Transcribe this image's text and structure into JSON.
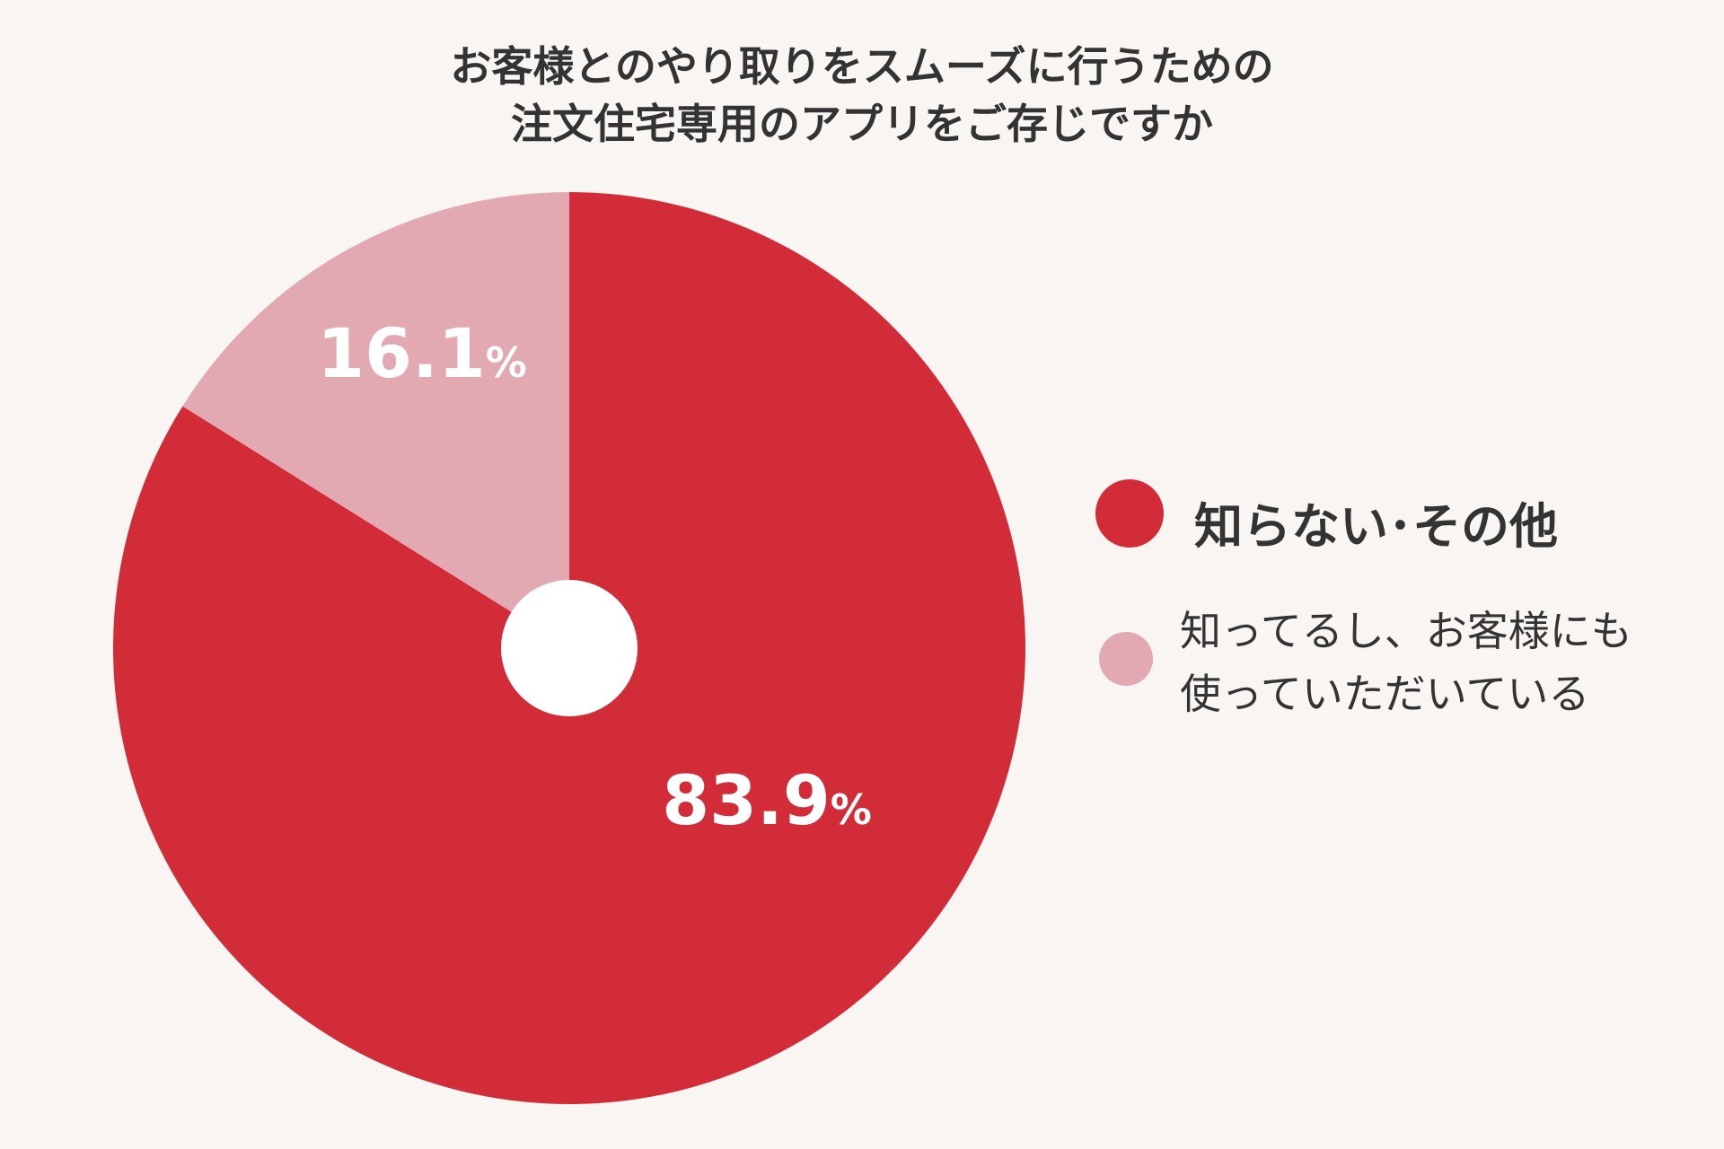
{
  "title_lines": [
    "お客様とのやり取りをスムーズに行うための",
    "注文住宅専用のアプリをご存じですか"
  ],
  "chart_data": {
    "type": "pie",
    "title": "お客様とのやり取りをスムーズに行うための注文住宅専用のアプリをご存じですか",
    "categories": [
      "知らない･その他",
      "知ってるし、お客様にも使っていただいている"
    ],
    "values": [
      83.9,
      16.1
    ],
    "unit": "%",
    "data_labels": [
      "83.9%",
      "16.1%"
    ],
    "colors": [
      "#d22c39",
      "#e3a9b2"
    ],
    "donut_hole": true,
    "legend_position": "right"
  },
  "legend": {
    "item1": "知らない･その他",
    "item2_lines": [
      "知ってるし、お客様にも",
      "使っていただいている"
    ]
  }
}
